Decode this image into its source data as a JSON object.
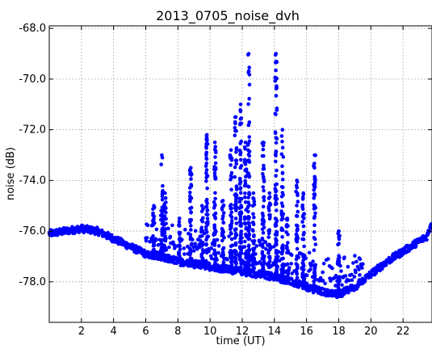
{
  "chart_data": {
    "type": "scatter",
    "title": "2013_0705_noise_dvh",
    "xlabel": "time (UT)",
    "ylabel": "noise (dB)",
    "xlim": [
      0,
      23.8
    ],
    "ylim": [
      -79.6,
      -67.9
    ],
    "xticks": [
      2,
      4,
      6,
      8,
      10,
      12,
      14,
      16,
      18,
      20,
      22
    ],
    "xtick_labels": [
      "2",
      "4",
      "6",
      "8",
      "10",
      "12",
      "14",
      "16",
      "18",
      "20",
      "22"
    ],
    "yticks": [
      -68,
      -70,
      -72,
      -74,
      -76,
      -78
    ],
    "ytick_labels": [
      "-68.0",
      "-70.0",
      "-72.0",
      "-74.0",
      "-76.0",
      "-78.0"
    ],
    "grid": true,
    "marker_color": "#0000ff",
    "baseline": {
      "x": [
        0,
        1,
        2,
        3,
        4,
        5,
        6,
        7,
        8,
        9,
        10,
        11,
        12,
        13,
        14,
        15,
        16,
        17,
        18,
        19,
        20,
        21,
        22,
        23,
        23.5,
        23.8
      ],
      "y": [
        -76.1,
        -76.0,
        -75.9,
        -76.0,
        -76.3,
        -76.6,
        -76.9,
        -77.0,
        -77.2,
        -77.3,
        -77.4,
        -77.5,
        -77.6,
        -77.7,
        -77.8,
        -78.0,
        -78.2,
        -78.4,
        -78.5,
        -78.2,
        -77.7,
        -77.2,
        -76.8,
        -76.4,
        -76.2,
        -75.6
      ]
    },
    "spikes": [
      {
        "x": 6.5,
        "peak": -75.0
      },
      {
        "x": 7.0,
        "peak": -73.0
      },
      {
        "x": 7.2,
        "peak": -74.5
      },
      {
        "x": 8.1,
        "peak": -75.5
      },
      {
        "x": 8.8,
        "peak": -73.5
      },
      {
        "x": 9.5,
        "peak": -75.0
      },
      {
        "x": 9.8,
        "peak": -72.2
      },
      {
        "x": 10.3,
        "peak": -72.5
      },
      {
        "x": 10.8,
        "peak": -74.8
      },
      {
        "x": 11.3,
        "peak": -72.8
      },
      {
        "x": 11.6,
        "peak": -71.5
      },
      {
        "x": 11.9,
        "peak": -71.0
      },
      {
        "x": 12.2,
        "peak": -72.5
      },
      {
        "x": 12.4,
        "peak": -69.0
      },
      {
        "x": 12.7,
        "peak": -74.5
      },
      {
        "x": 13.3,
        "peak": -72.5
      },
      {
        "x": 13.7,
        "peak": -74.5
      },
      {
        "x": 14.1,
        "peak": -69.0
      },
      {
        "x": 14.5,
        "peak": -72.0
      },
      {
        "x": 14.8,
        "peak": -75.5
      },
      {
        "x": 15.4,
        "peak": -74.0
      },
      {
        "x": 15.8,
        "peak": -74.5
      },
      {
        "x": 16.5,
        "peak": -73.0
      },
      {
        "x": 18.0,
        "peak": -76.0
      }
    ]
  }
}
